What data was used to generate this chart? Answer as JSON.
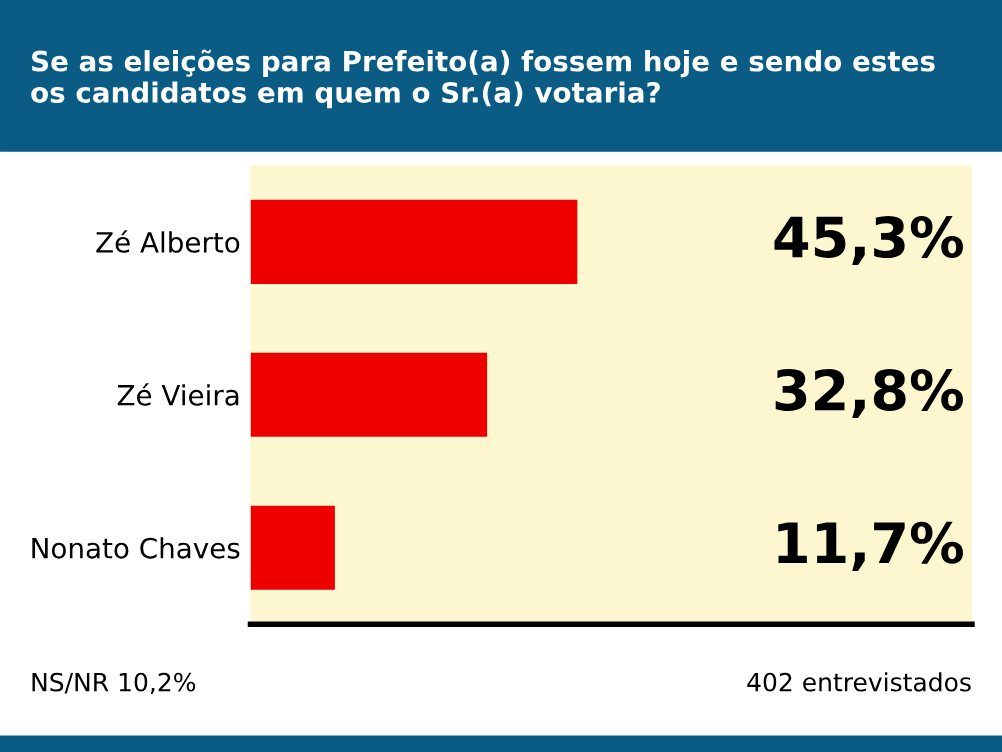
{
  "chart_data": {
    "type": "bar",
    "orientation": "horizontal",
    "title": "Se as eleições para Prefeito(a) fossem hoje e sendo estes\nos candidatos em quem o Sr.(a) votaria?",
    "categories": [
      "Zé Alberto",
      "Zé Vieira",
      "Nonato Chaves"
    ],
    "values": [
      45.3,
      32.8,
      11.7
    ],
    "value_labels": [
      "45,3%",
      "32,8%",
      "11,7%"
    ],
    "color": "#ee0000",
    "xlim": [
      0,
      100
    ],
    "tick_labels": "y",
    "grid": false,
    "annotations": [
      "NS/NR 10,2%",
      "402 entrevistados"
    ]
  }
}
